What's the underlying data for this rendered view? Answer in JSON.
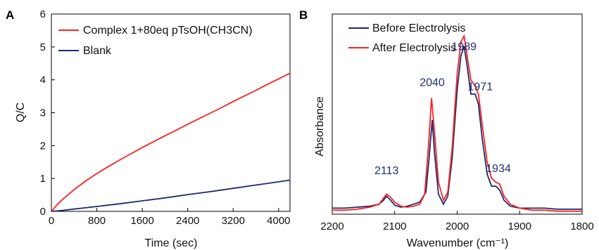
{
  "chart_data": [
    {
      "panel": "A",
      "type": "line",
      "xlabel": "Time (sec)",
      "ylabel": "Q/C",
      "xlim": [
        0,
        4200
      ],
      "ylim": [
        0,
        6
      ],
      "xticks": [
        0,
        800,
        1600,
        2400,
        3200,
        4000
      ],
      "yticks": [
        0,
        1,
        2,
        3,
        4,
        5,
        6
      ],
      "legend_position": "top-left",
      "grid": false,
      "series": [
        {
          "name": "Complex 1+80eq pTsOH(CH3CN)",
          "color": "#ff2020",
          "points": [
            [
              0,
              0
            ],
            [
              100,
              0.2
            ],
            [
              200,
              0.37
            ],
            [
              400,
              0.66
            ],
            [
              600,
              0.92
            ],
            [
              800,
              1.15
            ],
            [
              1000,
              1.36
            ],
            [
              1200,
              1.56
            ],
            [
              1400,
              1.75
            ],
            [
              1600,
              1.94
            ],
            [
              1800,
              2.12
            ],
            [
              2000,
              2.3
            ],
            [
              2200,
              2.47
            ],
            [
              2400,
              2.65
            ],
            [
              2600,
              2.82
            ],
            [
              2800,
              2.99
            ],
            [
              3000,
              3.16
            ],
            [
              3200,
              3.34
            ],
            [
              3400,
              3.51
            ],
            [
              3600,
              3.68
            ],
            [
              3800,
              3.86
            ],
            [
              4000,
              4.03
            ],
            [
              4200,
              4.2
            ]
          ]
        },
        {
          "name": "Blank",
          "color": "#1a2a6c",
          "points": [
            [
              0,
              0
            ],
            [
              200,
              0.03
            ],
            [
              400,
              0.07
            ],
            [
              800,
              0.15
            ],
            [
              1200,
              0.23
            ],
            [
              1600,
              0.32
            ],
            [
              2000,
              0.41
            ],
            [
              2400,
              0.51
            ],
            [
              2800,
              0.6
            ],
            [
              3200,
              0.7
            ],
            [
              3600,
              0.8
            ],
            [
              4000,
              0.9
            ],
            [
              4200,
              0.95
            ]
          ]
        }
      ]
    },
    {
      "panel": "B",
      "type": "line",
      "xlabel": "Wavenumber (cm⁻¹)",
      "ylabel": "Absorbance",
      "xlim": [
        2200,
        1800
      ],
      "x_reversed": true,
      "ylim": [
        0,
        1
      ],
      "xticks": [
        2200,
        2100,
        2000,
        1900,
        1800
      ],
      "legend_position": "top-left",
      "grid": false,
      "peak_labels": [
        {
          "text": "2113",
          "x": 2113,
          "y": 0.2
        },
        {
          "text": "2040",
          "x": 2040,
          "y": 0.64
        },
        {
          "text": "1989",
          "x": 1989,
          "y": 0.82
        },
        {
          "text": "1971",
          "x": 1963,
          "y": 0.62
        },
        {
          "text": "1934",
          "x": 1934,
          "y": 0.21
        }
      ],
      "series": [
        {
          "name": "Before Electrolysis",
          "color": "#1a2a6c",
          "points": [
            [
              2200,
              0.03
            ],
            [
              2180,
              0.03
            ],
            [
              2160,
              0.035
            ],
            [
              2140,
              0.04
            ],
            [
              2125,
              0.05
            ],
            [
              2118,
              0.07
            ],
            [
              2113,
              0.09
            ],
            [
              2108,
              0.075
            ],
            [
              2100,
              0.045
            ],
            [
              2090,
              0.035
            ],
            [
              2080,
              0.04
            ],
            [
              2070,
              0.05
            ],
            [
              2060,
              0.06
            ],
            [
              2050,
              0.11
            ],
            [
              2045,
              0.28
            ],
            [
              2040,
              0.47
            ],
            [
              2036,
              0.3
            ],
            [
              2030,
              0.1
            ],
            [
              2022,
              0.05
            ],
            [
              2015,
              0.09
            ],
            [
              2008,
              0.28
            ],
            [
              2000,
              0.62
            ],
            [
              1994,
              0.79
            ],
            [
              1989,
              0.84
            ],
            [
              1984,
              0.74
            ],
            [
              1978,
              0.6
            ],
            [
              1971,
              0.6
            ],
            [
              1966,
              0.55
            ],
            [
              1960,
              0.38
            ],
            [
              1952,
              0.2
            ],
            [
              1945,
              0.14
            ],
            [
              1938,
              0.14
            ],
            [
              1932,
              0.12
            ],
            [
              1925,
              0.07
            ],
            [
              1915,
              0.04
            ],
            [
              1900,
              0.03
            ],
            [
              1880,
              0.03
            ],
            [
              1860,
              0.03
            ],
            [
              1840,
              0.025
            ],
            [
              1820,
              0.025
            ],
            [
              1800,
              0.025
            ]
          ]
        },
        {
          "name": "After Electrolysis",
          "color": "#ff2020",
          "points": [
            [
              2200,
              0.02
            ],
            [
              2180,
              0.02
            ],
            [
              2160,
              0.025
            ],
            [
              2140,
              0.035
            ],
            [
              2125,
              0.05
            ],
            [
              2118,
              0.08
            ],
            [
              2113,
              0.1
            ],
            [
              2108,
              0.09
            ],
            [
              2100,
              0.06
            ],
            [
              2090,
              0.04
            ],
            [
              2080,
              0.035
            ],
            [
              2070,
              0.04
            ],
            [
              2060,
              0.05
            ],
            [
              2052,
              0.1
            ],
            [
              2046,
              0.34
            ],
            [
              2041,
              0.58
            ],
            [
              2036,
              0.4
            ],
            [
              2030,
              0.16
            ],
            [
              2022,
              0.07
            ],
            [
              2015,
              0.11
            ],
            [
              2008,
              0.33
            ],
            [
              2000,
              0.7
            ],
            [
              1994,
              0.86
            ],
            [
              1989,
              0.89
            ],
            [
              1984,
              0.79
            ],
            [
              1978,
              0.67
            ],
            [
              1971,
              0.64
            ],
            [
              1966,
              0.6
            ],
            [
              1960,
              0.45
            ],
            [
              1952,
              0.26
            ],
            [
              1945,
              0.18
            ],
            [
              1938,
              0.16
            ],
            [
              1932,
              0.15
            ],
            [
              1925,
              0.09
            ],
            [
              1915,
              0.05
            ],
            [
              1900,
              0.03
            ],
            [
              1880,
              0.02
            ],
            [
              1860,
              0.02
            ],
            [
              1840,
              0.015
            ],
            [
              1820,
              0.015
            ],
            [
              1800,
              0.015
            ]
          ]
        }
      ]
    }
  ]
}
